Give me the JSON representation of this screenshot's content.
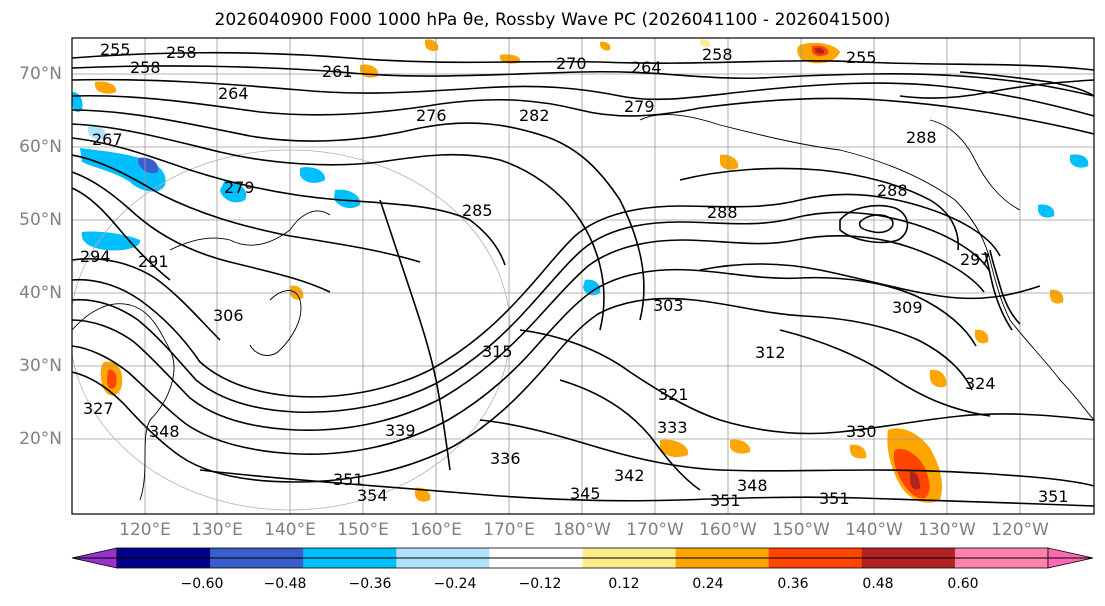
{
  "title": "2026040900 F000 1000 hPa θe, Rossby Wave PC (2026041100 - 2026041500)",
  "lat_labels": [
    "70°N",
    "60°N",
    "50°N",
    "40°N",
    "30°N",
    "20°N"
  ],
  "lon_labels": [
    "120°E",
    "130°E",
    "140°E",
    "150°E",
    "160°E",
    "170°E",
    "180°W",
    "170°W",
    "160°W",
    "150°W",
    "140°W",
    "130°W",
    "120°W"
  ],
  "colorbar": {
    "ticks": [
      "−0.60",
      "−0.48",
      "−0.36",
      "−0.24",
      "−0.12",
      "0.12",
      "0.24",
      "0.36",
      "0.48",
      "0.60"
    ],
    "colors": [
      "#9932cc",
      "#00008b",
      "#3a5fcd",
      "#00bfff",
      "#b0e2ff",
      "#ffffff",
      "#ffec8b",
      "#ffa500",
      "#ff4500",
      "#b22222",
      "#ff82ab",
      "#ff69b4"
    ]
  },
  "contour_labels": [
    "255",
    "258",
    "258",
    "261",
    "270",
    "264",
    "258",
    "255",
    "264",
    "267",
    "276",
    "282",
    "279",
    "288",
    "288",
    "279",
    "285",
    "288",
    "291",
    "294",
    "297",
    "306",
    "303",
    "309",
    "312",
    "315",
    "321",
    "324",
    "327",
    "330",
    "333",
    "336",
    "339",
    "342",
    "345",
    "348",
    "348",
    "351",
    "351",
    "351",
    "354",
    "351"
  ]
}
